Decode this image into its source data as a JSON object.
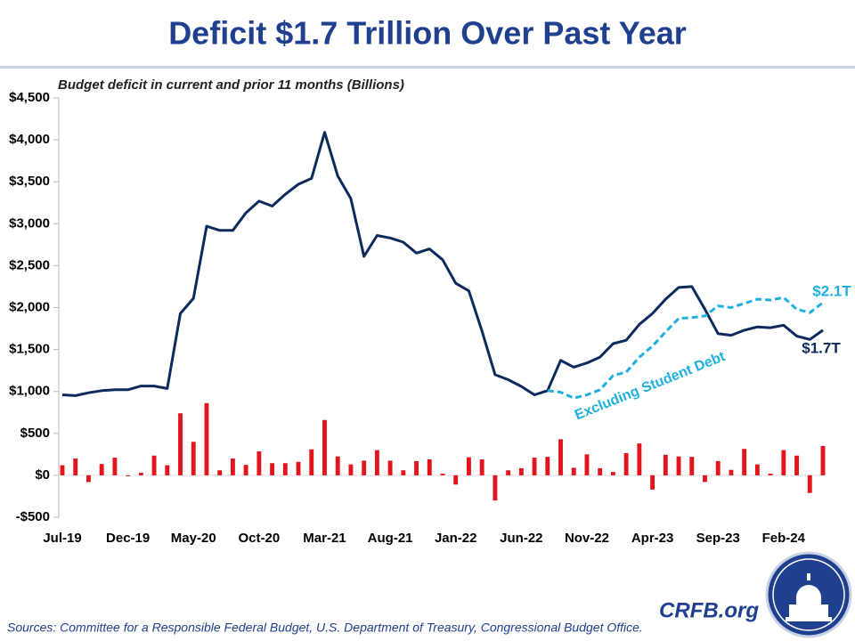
{
  "chart_data": {
    "type": "line",
    "title": "Deficit $1.7 Trillion Over Past Year",
    "subtitle": "Budget deficit in current and prior 11 months (Billions)",
    "source": "Sources: Committee for a Responsible Federal Budget, U.S. Department of Treasury, Congressional Budget Office.",
    "brand": "CRFB.org",
    "annotations": [
      "$2.1T",
      "$1.7T",
      "Excluding Student Debt"
    ],
    "categories": [
      "Jul-19",
      null,
      null,
      null,
      null,
      "Dec-19",
      null,
      null,
      null,
      null,
      "May-20",
      null,
      null,
      null,
      null,
      "Oct-20",
      null,
      null,
      null,
      null,
      "Mar-21",
      null,
      null,
      null,
      null,
      "Aug-21",
      null,
      null,
      null,
      null,
      "Jan-22",
      null,
      null,
      null,
      null,
      "Jun-22",
      null,
      null,
      null,
      null,
      "Nov-22",
      null,
      null,
      null,
      null,
      "Apr-23",
      null,
      null,
      null,
      null,
      "Sep-23",
      null,
      null,
      null,
      null,
      "Feb-24",
      null,
      null,
      null
    ],
    "series": [
      {
        "name": "Budget deficit",
        "type": "bar",
        "color": "#e3141b",
        "values": [
          120,
          200,
          -80,
          135,
          210,
          -10,
          30,
          235,
          120,
          740,
          400,
          860,
          60,
          200,
          125,
          285,
          145,
          145,
          160,
          310,
          660,
          225,
          130,
          175,
          300,
          175,
          60,
          170,
          190,
          20,
          -110,
          215,
          190,
          -300,
          60,
          85,
          210,
          220,
          430,
          90,
          250,
          85,
          40,
          265,
          380,
          -170,
          245,
          225,
          220,
          -80,
          170,
          65,
          315,
          130,
          20,
          300,
          235,
          -210,
          350
        ]
      },
      {
        "name": "Deficit",
        "type": "line",
        "color": "#0d2a5c",
        "dashed": false,
        "values": [
          960,
          950,
          984,
          1010,
          1020,
          1020,
          1065,
          1065,
          1035,
          1930,
          2110,
          2970,
          2920,
          2920,
          3130,
          3270,
          3210,
          3350,
          3470,
          3540,
          4090,
          3570,
          3300,
          2610,
          2860,
          2830,
          2780,
          2650,
          2700,
          2570,
          2290,
          2200,
          1720,
          1200,
          1140,
          1060,
          960,
          1010,
          1370,
          1290,
          1340,
          1410,
          1570,
          1610,
          1800,
          1930,
          2100,
          2240,
          2250,
          1980,
          1690,
          1670,
          1730,
          1770,
          1760,
          1790,
          1660,
          1620,
          1730
        ]
      },
      {
        "name": "Excluding Student Debt",
        "type": "line",
        "color": "#1fb0e0",
        "dashed": true,
        "values": [
          null,
          null,
          null,
          null,
          null,
          null,
          null,
          null,
          null,
          null,
          null,
          null,
          null,
          null,
          null,
          null,
          null,
          null,
          null,
          null,
          null,
          null,
          null,
          null,
          null,
          null,
          null,
          null,
          null,
          null,
          null,
          null,
          null,
          null,
          null,
          null,
          null,
          1010,
          990,
          920,
          960,
          1020,
          1190,
          1230,
          1410,
          1540,
          1710,
          1870,
          1880,
          1900,
          2020,
          2000,
          2050,
          2100,
          2090,
          2120,
          1980,
          1940,
          2060
        ]
      }
    ],
    "ylim": [
      -500,
      4500
    ],
    "yticks": [
      {
        "value": -500,
        "label": "-$500"
      },
      {
        "value": 0,
        "label": "$0"
      },
      {
        "value": 500,
        "label": "$500"
      },
      {
        "value": 1000,
        "label": "$1,000"
      },
      {
        "value": 1500,
        "label": "$1,500"
      },
      {
        "value": 2000,
        "label": "$2,000"
      },
      {
        "value": 2500,
        "label": "$2,500"
      },
      {
        "value": 3000,
        "label": "$3,000"
      },
      {
        "value": 3500,
        "label": "$3,500"
      },
      {
        "value": 4000,
        "label": "$4,000"
      },
      {
        "value": 4500,
        "label": "$4,500"
      }
    ],
    "grid": false
  }
}
